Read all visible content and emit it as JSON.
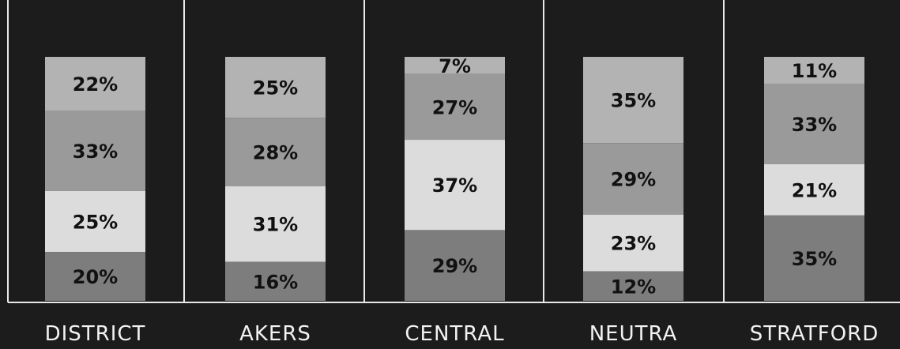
{
  "chart_data": {
    "type": "bar",
    "stacked": true,
    "normalized": true,
    "categories": [
      "DISTRICT",
      "AKERS",
      "CENTRAL",
      "NEUTRA",
      "STRATFORD"
    ],
    "stacks_top_to_bottom": [
      [
        22,
        33,
        25,
        20
      ],
      [
        25,
        28,
        31,
        16
      ],
      [
        7,
        27,
        37,
        29
      ],
      [
        35,
        29,
        23,
        12
      ],
      [
        11,
        33,
        21,
        35
      ]
    ],
    "segment_colors_top_to_bottom": [
      "#b3b3b3",
      "#9a9a9a",
      "#dcdcdc",
      "#7d7d7d"
    ],
    "value_suffix": "%",
    "background": "#1c1c1c",
    "title": "",
    "xlabel": "",
    "ylabel": "",
    "grid": false,
    "legend": "none"
  }
}
